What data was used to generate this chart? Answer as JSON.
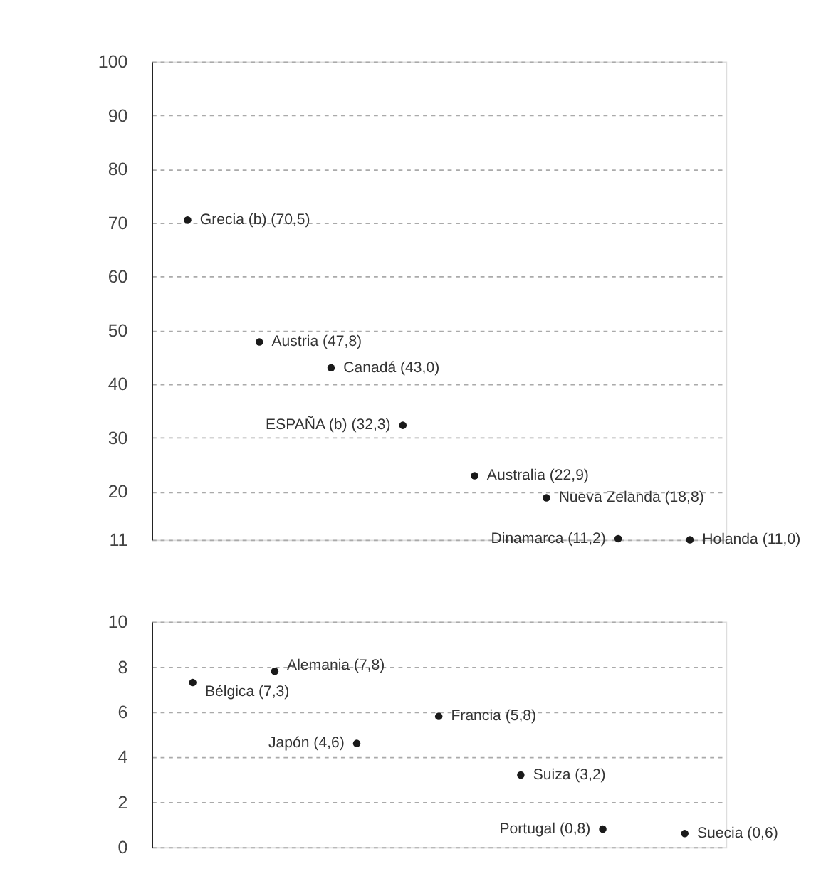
{
  "chart_data": [
    {
      "type": "scatter",
      "categories": [
        null,
        null,
        null,
        null,
        null,
        null,
        null,
        null
      ],
      "ylim": [
        11,
        100
      ],
      "yticks": [
        11,
        20,
        30,
        40,
        50,
        60,
        70,
        80,
        90,
        100
      ],
      "grid": "y",
      "marker": "circle",
      "color": "#1a1a1a",
      "values": [
        70.5,
        47.8,
        43.0,
        32.3,
        22.9,
        18.8,
        11.2,
        11.0
      ],
      "value_labels": [
        "Grecia (b) (70,5)",
        "Austria (47,8)",
        "Canadá (43,0)",
        "ESPAÑA (b) (32,3)",
        "Australia (22,9)",
        "Nueva Zelanda (18,8)",
        "Dinamarca (11,2)",
        "Holanda (11,0)"
      ]
    },
    {
      "type": "scatter",
      "categories": [
        null,
        null,
        null,
        null,
        null,
        null,
        null
      ],
      "ylim": [
        0,
        10
      ],
      "yticks": [
        0,
        2,
        4,
        6,
        8,
        10
      ],
      "grid": "y",
      "marker": "circle",
      "color": "#1a1a1a",
      "values": [
        7.3,
        7.8,
        4.6,
        5.8,
        3.2,
        0.8,
        0.6
      ],
      "value_labels": [
        "Bélgica (7,3)",
        "Alemania (7,8)",
        "Japón (4,6)",
        "Francia (5,8)",
        "Suiza (3,2)",
        "Portugal (0,8)",
        "Suecia (0,6)"
      ]
    }
  ]
}
